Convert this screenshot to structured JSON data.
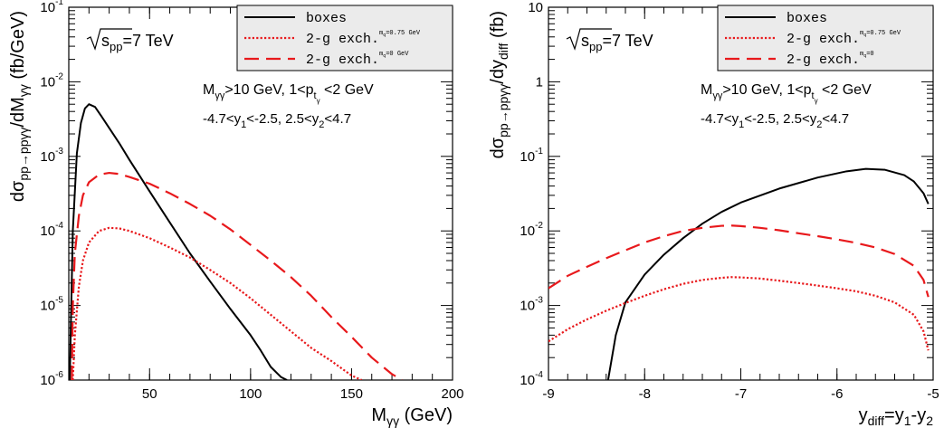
{
  "chart_data": [
    {
      "type": "line",
      "panel": "left",
      "ylabel": "dσ_{pp→ppγγ}/dM_{γγ} (fb/GeV)",
      "xlabel": "M_{γγ} (GeV)",
      "x_scale": "linear",
      "y_scale": "log",
      "xlim": [
        10,
        200
      ],
      "ylim": [
        1e-06,
        0.1
      ],
      "x_ticks": [
        50,
        100,
        150,
        200
      ],
      "x_tick_labels": [
        "50",
        "100",
        "150",
        "200"
      ],
      "y_ticks": [
        1e-06,
        1e-05,
        0.0001,
        0.001,
        0.01,
        0.1
      ],
      "y_tick_labels": [
        {
          "base": "10",
          "exp": "-6"
        },
        {
          "base": "10",
          "exp": "-5"
        },
        {
          "base": "10",
          "exp": "-4"
        },
        {
          "base": "10",
          "exp": "-3"
        },
        {
          "base": "10",
          "exp": "-2"
        },
        {
          "base": "10",
          "exp": "-1"
        }
      ],
      "energy_label": "s_pp=7 TeV",
      "cuts_line1": "M_γγ>10 GeV, 1<p_tγ <2 GeV",
      "cuts_line2": "-4.7<y_1<-2.5, 2.5<y_2<4.7",
      "legend_position": "top-right",
      "series": [
        {
          "name": "boxes",
          "style": "solid",
          "color": "#000000",
          "x": [
            10.5,
            11,
            12,
            14,
            16,
            18,
            20,
            23,
            26,
            30,
            35,
            40,
            50,
            60,
            70,
            80,
            90,
            100,
            105,
            110,
            115,
            118
          ],
          "y": [
            1e-06,
            5e-06,
            0.0001,
            0.0011,
            0.0028,
            0.0044,
            0.005,
            0.0046,
            0.0035,
            0.0024,
            0.0015,
            0.0009,
            0.00034,
            0.00013,
            5e-05,
            2.1e-05,
            9e-06,
            4e-06,
            2.5e-06,
            1.5e-06,
            1.1e-06,
            1e-06
          ]
        },
        {
          "name": "2-g exch.",
          "subscript": "m_q=0.75 GeV",
          "style": "dotted",
          "color": "#e8191c",
          "x": [
            12,
            13,
            15,
            17,
            20,
            25,
            30,
            35,
            40,
            50,
            60,
            70,
            80,
            90,
            100,
            110,
            120,
            130,
            140,
            150,
            155
          ],
          "y": [
            1e-06,
            4e-06,
            1.8e-05,
            4e-05,
            7e-05,
            0.0001,
            0.00011,
            0.000108,
            0.0001,
            8e-05,
            6e-05,
            4.4e-05,
            3e-05,
            2e-05,
            1.25e-05,
            7.5e-06,
            4.5e-06,
            2.7e-06,
            1.8e-06,
            1.15e-06,
            1e-06
          ]
        },
        {
          "name": "2-g exch.",
          "subscript": "m_q=0 GeV",
          "style": "dashed",
          "color": "#e8191c",
          "x": [
            11.5,
            12,
            13,
            15,
            17,
            20,
            25,
            30,
            35,
            40,
            50,
            60,
            70,
            80,
            90,
            100,
            110,
            120,
            130,
            140,
            150,
            160,
            170,
            175
          ],
          "y": [
            1e-06,
            1e-05,
            5e-05,
            0.00016,
            0.0003,
            0.00045,
            0.00057,
            0.0006,
            0.00058,
            0.00053,
            0.00043,
            0.00032,
            0.00023,
            0.00016,
            0.000105,
            6.5e-05,
            4e-05,
            2.4e-05,
            1.35e-05,
            7e-06,
            3.8e-06,
            2e-06,
            1.2e-06,
            1e-06
          ]
        }
      ]
    },
    {
      "type": "line",
      "panel": "right",
      "ylabel": "dσ_{pp→ppγγ}/dy_{diff} (fb)",
      "xlabel": "y_{diff}=y_1-y_2",
      "x_scale": "linear",
      "y_scale": "log",
      "xlim": [
        -9,
        -5
      ],
      "ylim": [
        0.0001,
        10
      ],
      "x_ticks": [
        -9,
        -8,
        -7,
        -6,
        -5
      ],
      "x_tick_labels": [
        "-9",
        "-8",
        "-7",
        "-6",
        "-5"
      ],
      "y_ticks": [
        0.0001,
        0.001,
        0.01,
        0.1,
        1,
        10
      ],
      "y_tick_labels": [
        {
          "base": "10",
          "exp": "-4"
        },
        {
          "base": "10",
          "exp": "-3"
        },
        {
          "base": "10",
          "exp": "-2"
        },
        {
          "base": "10",
          "exp": "-1"
        },
        {
          "base": "1",
          "exp": ""
        },
        {
          "base": "10",
          "exp": ""
        }
      ],
      "energy_label": "s_pp=7 TeV",
      "cuts_line1": "M_γγ>10 GeV, 1<p_tγ <2 GeV",
      "cuts_line2": "-4.7<y_1<-2.5, 2.5<y_2<4.7",
      "legend_position": "top-right",
      "series": [
        {
          "name": "boxes",
          "style": "solid",
          "color": "#000000",
          "x": [
            -8.38,
            -8.3,
            -8.2,
            -8.0,
            -7.8,
            -7.6,
            -7.4,
            -7.2,
            -7.0,
            -6.6,
            -6.2,
            -5.9,
            -5.7,
            -5.5,
            -5.3,
            -5.2,
            -5.1,
            -5.05
          ],
          "y": [
            0.0001,
            0.0004,
            0.0011,
            0.0026,
            0.0048,
            0.008,
            0.0125,
            0.018,
            0.024,
            0.037,
            0.052,
            0.063,
            0.068,
            0.066,
            0.056,
            0.046,
            0.032,
            0.023
          ]
        },
        {
          "name": "2-g exch.",
          "subscript": "m_q=0.75 GeV",
          "style": "dotted",
          "color": "#e8191c",
          "x": [
            -9,
            -8.8,
            -8.6,
            -8.4,
            -8.2,
            -8.0,
            -7.8,
            -7.6,
            -7.4,
            -7.2,
            -7.1,
            -7.0,
            -6.8,
            -6.6,
            -6.4,
            -6.2,
            -6.0,
            -5.8,
            -5.6,
            -5.4,
            -5.2,
            -5.1,
            -5.05
          ],
          "y": [
            0.00033,
            0.00048,
            0.00065,
            0.00085,
            0.00108,
            0.00135,
            0.00165,
            0.00195,
            0.0022,
            0.00235,
            0.0024,
            0.00238,
            0.0023,
            0.00215,
            0.002,
            0.00185,
            0.0017,
            0.00155,
            0.00135,
            0.0011,
            0.00075,
            0.00045,
            0.00025
          ]
        },
        {
          "name": "2-g exch.",
          "subscript": "m_q=0",
          "style": "dashed",
          "color": "#e8191c",
          "x": [
            -9,
            -8.8,
            -8.6,
            -8.4,
            -8.2,
            -8.0,
            -7.8,
            -7.6,
            -7.4,
            -7.2,
            -7.1,
            -7.0,
            -6.8,
            -6.6,
            -6.4,
            -6.2,
            -6.0,
            -5.8,
            -5.6,
            -5.4,
            -5.2,
            -5.1,
            -5.05
          ],
          "y": [
            0.0017,
            0.0025,
            0.0033,
            0.0043,
            0.0055,
            0.007,
            0.0085,
            0.01,
            0.011,
            0.0117,
            0.0118,
            0.0116,
            0.011,
            0.0102,
            0.0093,
            0.0085,
            0.0077,
            0.0069,
            0.006,
            0.0049,
            0.0034,
            0.0022,
            0.0013
          ]
        }
      ]
    }
  ]
}
